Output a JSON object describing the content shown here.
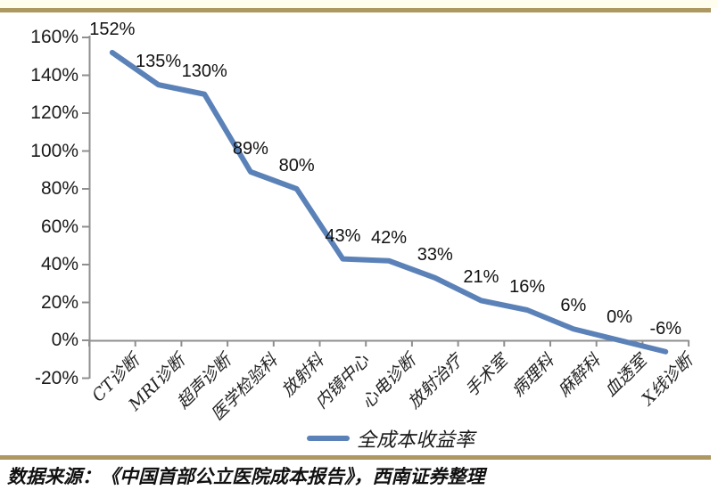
{
  "chart_data": {
    "type": "line",
    "title": "",
    "categories": [
      "CT诊断",
      "MRI诊断",
      "超声诊断",
      "医学检验科",
      "放射科",
      "内镜中心",
      "心电诊断",
      "放射治疗",
      "手术室",
      "病理科",
      "麻醉科",
      "血透室",
      "X线诊断"
    ],
    "series": [
      {
        "name": "全成本收益率",
        "values": [
          152,
          135,
          130,
          89,
          80,
          43,
          42,
          33,
          21,
          16,
          6,
          0,
          -6
        ]
      }
    ],
    "data_labels": [
      "152%",
      "135%",
      "130%",
      "89%",
      "80%",
      "43%",
      "42%",
      "33%",
      "21%",
      "16%",
      "6%",
      "0%",
      "-6%"
    ],
    "y_ticks": [
      160,
      140,
      120,
      100,
      80,
      60,
      40,
      20,
      0,
      -20
    ],
    "y_tick_labels": [
      "160%",
      "140%",
      "120%",
      "100%",
      "80%",
      "60%",
      "40%",
      "20%",
      "0%",
      "-20%"
    ],
    "ylim": [
      -20,
      160
    ],
    "xlabel": "",
    "ylabel": "",
    "grid": false,
    "legend_position": "bottom",
    "line_color": "#5b82b8"
  },
  "footer": {
    "source_text": "数据来源：《中国首部公立医院成本报告》，西南证券整理"
  },
  "theme": {
    "accent_gold": "#ae9862",
    "axis_gray": "#8f8f8f",
    "text_color": "#1a1a1a",
    "background": "#ffffff",
    "top_strip": "#fffdee"
  }
}
